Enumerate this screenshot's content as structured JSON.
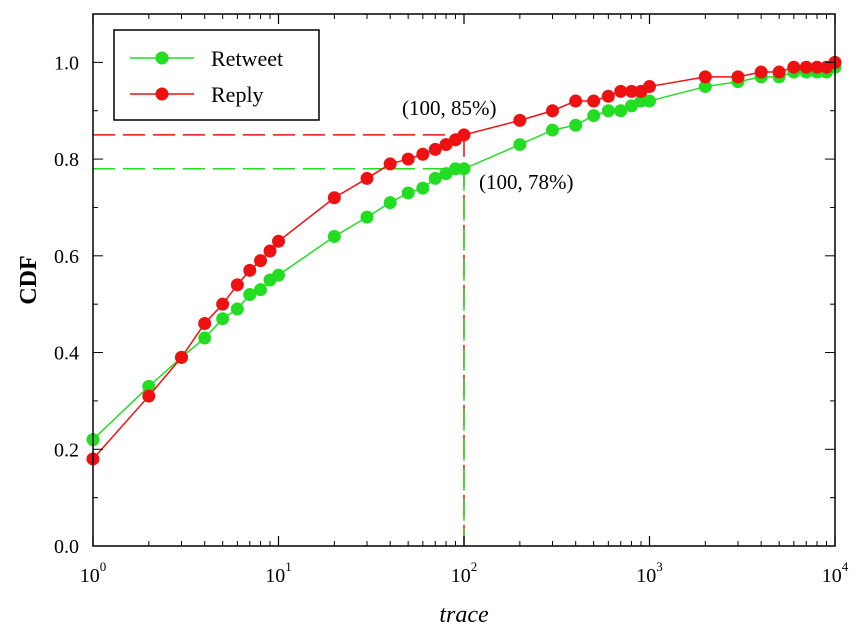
{
  "chart_data": {
    "type": "line",
    "title": "",
    "xlabel": "trace",
    "ylabel": "CDF",
    "xscale": "log",
    "xlim": [
      1,
      10000
    ],
    "ylim": [
      0,
      1.1
    ],
    "x_ticks": [
      1,
      10,
      100,
      1000,
      10000
    ],
    "x_tick_labels": [
      {
        "base": "10",
        "exp": "0"
      },
      {
        "base": "10",
        "exp": "1"
      },
      {
        "base": "10",
        "exp": "2"
      },
      {
        "base": "10",
        "exp": "3"
      },
      {
        "base": "10",
        "exp": "4"
      }
    ],
    "y_ticks": [
      0,
      0.2,
      0.4,
      0.6,
      0.8,
      1.0
    ],
    "y_tick_labels": [
      "0.0",
      "0.2",
      "0.4",
      "0.6",
      "0.8",
      "1.0"
    ],
    "grid": false,
    "legend_position": "top-left",
    "x": [
      1,
      2,
      3,
      4,
      5,
      6,
      7,
      8,
      9,
      10,
      20,
      30,
      40,
      50,
      60,
      70,
      80,
      90,
      100,
      200,
      300,
      400,
      500,
      600,
      700,
      800,
      900,
      1000,
      2000,
      3000,
      4000,
      5000,
      6000,
      7000,
      8000,
      9000,
      10000
    ],
    "series": [
      {
        "name": "Retweet",
        "color": "#22dd22",
        "values": [
          0.22,
          0.33,
          0.39,
          0.43,
          0.47,
          0.49,
          0.52,
          0.53,
          0.55,
          0.56,
          0.64,
          0.68,
          0.71,
          0.73,
          0.74,
          0.76,
          0.77,
          0.78,
          0.78,
          0.83,
          0.86,
          0.87,
          0.89,
          0.9,
          0.9,
          0.91,
          0.92,
          0.92,
          0.95,
          0.96,
          0.97,
          0.97,
          0.98,
          0.98,
          0.98,
          0.98,
          0.99
        ]
      },
      {
        "name": "Reply",
        "color": "#ee1111",
        "values": [
          0.18,
          0.31,
          0.39,
          0.46,
          0.5,
          0.54,
          0.57,
          0.59,
          0.61,
          0.63,
          0.72,
          0.76,
          0.79,
          0.8,
          0.81,
          0.82,
          0.83,
          0.84,
          0.85,
          0.88,
          0.9,
          0.92,
          0.92,
          0.93,
          0.94,
          0.94,
          0.94,
          0.95,
          0.97,
          0.97,
          0.98,
          0.98,
          0.99,
          0.99,
          0.99,
          0.99,
          1.0
        ]
      }
    ],
    "reference_lines": [
      {
        "series": "Reply",
        "x": 100,
        "y": 0.85,
        "color": "#ee1111"
      },
      {
        "series": "Retweet",
        "x": 100,
        "y": 0.78,
        "color": "#22dd22"
      }
    ],
    "annotations": [
      {
        "name": "annotation-reply",
        "text": "(100, 85%)",
        "x": 100,
        "y": 0.85,
        "anchor": "above-left"
      },
      {
        "name": "annotation-retweet",
        "text": "(100, 78%)",
        "x": 100,
        "y": 0.78,
        "anchor": "below-right"
      }
    ]
  }
}
